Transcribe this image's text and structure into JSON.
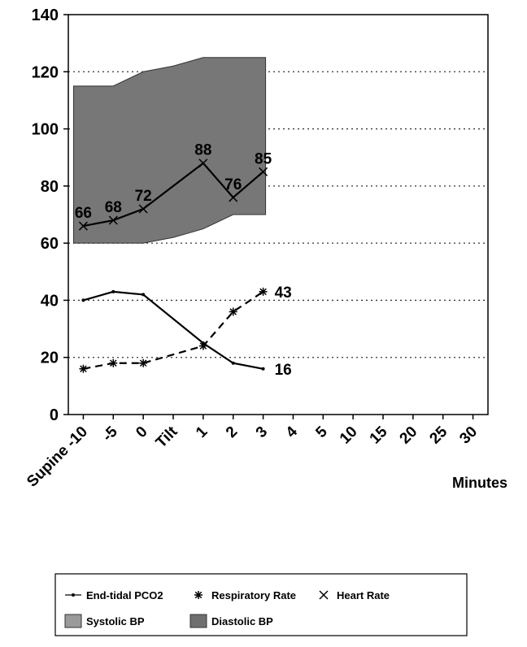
{
  "chart_data": {
    "type": "line",
    "title": "",
    "xlabel": "Minutes",
    "ylabel": "",
    "ylim": [
      0,
      140
    ],
    "yticks": [
      0,
      20,
      40,
      60,
      80,
      100,
      120,
      140
    ],
    "grid": "horizontal dotted lines",
    "legend_position": "bottom",
    "categories": [
      "Supine -10",
      "-5",
      "0",
      "Tilt",
      "1",
      "2",
      "3",
      "4",
      "5",
      "10",
      "15",
      "20",
      "25",
      "30"
    ],
    "bp_band": {
      "systolic_top": {
        "x": [
          "Supine -10",
          "-5",
          "0",
          "Tilt",
          "1",
          "2",
          "3"
        ],
        "values": [
          115,
          115,
          120,
          122,
          125,
          125,
          125
        ]
      },
      "diastolic_bottom": {
        "x": [
          "Supine -10",
          "-5",
          "0",
          "Tilt",
          "1",
          "2",
          "3"
        ],
        "values": [
          60,
          60,
          60,
          62,
          65,
          70,
          70
        ]
      },
      "color": "#777777"
    },
    "series": [
      {
        "name": "End-tidal PCO2",
        "marker": "dot",
        "style": "solid",
        "x": [
          "Supine -10",
          "-5",
          "0",
          "1",
          "2",
          "3"
        ],
        "values": [
          40,
          43,
          42,
          25,
          18,
          16
        ],
        "labels": [
          {
            "x": "3",
            "text": "16"
          }
        ]
      },
      {
        "name": "Respiratory Rate",
        "marker": "asterisk",
        "style": "dashed",
        "x": [
          "Supine -10",
          "-5",
          "0",
          "1",
          "2",
          "3"
        ],
        "values": [
          16,
          18,
          18,
          24,
          36,
          43
        ],
        "labels": [
          {
            "x": "3",
            "text": "43"
          }
        ]
      },
      {
        "name": "Heart Rate",
        "marker": "x",
        "style": "solid",
        "x": [
          "Supine -10",
          "-5",
          "0",
          "1",
          "2",
          "3"
        ],
        "values": [
          66,
          68,
          72,
          88,
          76,
          85
        ],
        "labels": [
          {
            "x": "Supine -10",
            "text": "66"
          },
          {
            "x": "-5",
            "text": "68"
          },
          {
            "x": "0",
            "text": "72"
          },
          {
            "x": "1",
            "text": "88"
          },
          {
            "x": "2",
            "text": "76"
          },
          {
            "x": "3",
            "text": "85"
          }
        ]
      }
    ],
    "legend": [
      {
        "label": "End-tidal PCO2",
        "symbol": "dot-line"
      },
      {
        "label": "Respiratory Rate",
        "symbol": "asterisk"
      },
      {
        "label": "Heart Rate",
        "symbol": "x"
      },
      {
        "label": "Systolic BP",
        "symbol": "swatch",
        "color": "#9a9a9a"
      },
      {
        "label": "Diastolic BP",
        "symbol": "swatch",
        "color": "#6f6f6f"
      }
    ]
  }
}
